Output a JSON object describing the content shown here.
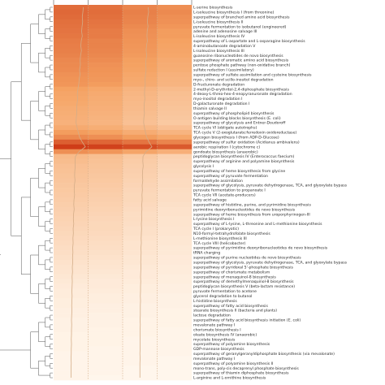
{
  "chart_data": {
    "type": "heatmap",
    "title": "",
    "xlabel": "",
    "ylabel": "",
    "grid": false,
    "legend": "none",
    "colors": {
      "low": "#fff6ec",
      "mid": "#f5a262",
      "high": "#c82a0a",
      "trend": "#d4ad88",
      "tree": "#555555"
    },
    "value_range": [
      0,
      1
    ],
    "rows": [
      "L-serine biosynthesis",
      "L-isoleucine biosynthesis I (from threonine)",
      "superpathway of branched amino acid biosynthesis",
      "L-isoleucine biosynthesis II",
      "pyruvate fermentation to isobutanol (engineered)",
      "adenine and adenosine salvage III",
      "L-isoleucine biosynthesis IV",
      "superpathway of L-aspartate and L-asparagine biosynthesis",
      "4-aminobutanoate degradation V",
      "L-isoleucine biosynthesis III",
      "guanosine ribonucleotides de novo biosynthesis",
      "superpathway of aromatic amino acid biosynthesis",
      "pentose phosphate pathway (non-oxidative branch)",
      "sulfate reduction I (assimilatory)",
      "superpathway of sulfate assimilation and cysteine biosynthesis",
      "myo-, chiro- and scillo-inositol degradation",
      "D-fructuronate degradation",
      "2-methyl-D-erythritol-2,4-diphosphate biosynthesis",
      "4-deoxy-L-threo-hex-4-enopyranuronate degradation",
      "myo-inositol degradation I",
      "D-galacturonate degradation I",
      "thiamin salvage II",
      "superpathway of phospholipid biosynthesis",
      "O-antigen building blocks biosynthesis (E. coli)",
      "superpathway of glycolysis and Entner-Doudoroff",
      "TCA cycle VI (obligate autotrophs)",
      "TCA cycle V (2-oxoglutarate:ferredoxin oxidoreductase)",
      "glycogen biosynthesis I (from ADP-D-Glucose)",
      "superpathway of sulfur oxidation (Acidianus ambivalens)",
      "aerobic respiration I (cytochrome c)",
      "gondoate biosynthesis (anaerobic)",
      "peptidoglycan biosynthesis IV (Enterococcus faecium)",
      "superpathway of arginine and polyamine biosynthesis",
      "glycolysis I",
      "superpathway of heme biosynthesis from glycine",
      "superpathway of pyruvate fermentation",
      "formaldehyde assimilation",
      "superpathway of glycolysis, pyruvate dehydrogenase, TCA, and glyoxylate bypass",
      "pyruvate fermentation to propanoate I",
      "TCA cycle VII (acetate-producers)",
      "fatty acid salvage",
      "superpathway of histidine, purine, and pyrimidine biosynthesis",
      "pyrimidine deoxyribonucleotides de novo biosynthesis",
      "superpathway of heme biosynthesis from uroporphyrinogen-III",
      "L-lysine biosynthesis I",
      "superpathway of L-lysine, L-threonine and L-methionine biosynthesis",
      "TCA cycle I (prokaryotic)",
      "N10-formyl-tetrahydrofolate biosynthesis",
      "L-methionine biosynthesis III",
      "TCA cycle VIII (helicobacter)",
      "superpathway of pyrimidine deoxyribonucleotides de novo biosynthesis",
      "tRNA charging",
      "superpathway of purine nucleotides de novo biosynthesis",
      "superpathway of glycolysis, pyruvate dehydrogenase, TCA, and glyoxylate bypass",
      "superpathway of pyridoxal 5'-phosphate biosynthesis",
      "superpathway of chorismate metabolism",
      "superpathway of menaquinol-8 biosynthesis",
      "superpathway of demethylmenaquinol-8 biosynthesis",
      "peptidoglycan biosynthesis V (beta-lactam resistance)",
      "pyruvate fermentation to acetone",
      "glycerol degradation to butanol",
      "L-histidine biosynthesis",
      "superpathway of fatty acid biosynthesis",
      "stearate biosynthesis II (bacteria and plants)",
      "lactose degradation",
      "superpathway of fatty acid biosynthesis initiation (E. coli)",
      "mevalonate pathway I",
      "chorismate biosynthesis I",
      "oleate biosynthesis IV (anaerobic)",
      "mycolate biosynthesis",
      "superpathway of polyamine biosynthesis",
      "GDP-mannose biosynthesis",
      "superpathway of geranylgeranyldiphosphate biosynthesis (via mevalonate)",
      "mevalonate pathway I",
      "superpathway of polyamine biosynthesis II",
      "mono-trans, poly-cis decaprenyl phosphate biosynthesis",
      "superpathway of thiamin diphosphate biosynthesis",
      "L-arginine and L-ornithine biosynthesis"
    ],
    "columns": 4,
    "values": [
      [
        0.72,
        0.7,
        0.62,
        0.58
      ],
      [
        0.74,
        0.72,
        0.64,
        0.6
      ],
      [
        0.73,
        0.71,
        0.63,
        0.58
      ],
      [
        0.71,
        0.69,
        0.62,
        0.57
      ],
      [
        0.7,
        0.68,
        0.6,
        0.55
      ],
      [
        0.69,
        0.66,
        0.58,
        0.52
      ],
      [
        0.68,
        0.66,
        0.57,
        0.52
      ],
      [
        0.66,
        0.63,
        0.56,
        0.5
      ],
      [
        0.65,
        0.63,
        0.55,
        0.49
      ],
      [
        0.64,
        0.62,
        0.54,
        0.48
      ],
      [
        0.63,
        0.61,
        0.53,
        0.47
      ],
      [
        0.61,
        0.59,
        0.51,
        0.45
      ],
      [
        0.6,
        0.57,
        0.5,
        0.44
      ],
      [
        0.59,
        0.56,
        0.49,
        0.43
      ],
      [
        0.57,
        0.55,
        0.47,
        0.41
      ],
      [
        0.56,
        0.54,
        0.46,
        0.4
      ],
      [
        0.55,
        0.52,
        0.45,
        0.39
      ],
      [
        0.5,
        0.47,
        0.4,
        0.35
      ],
      [
        0.48,
        0.45,
        0.38,
        0.33
      ],
      [
        0.47,
        0.44,
        0.37,
        0.32
      ],
      [
        0.46,
        0.43,
        0.36,
        0.31
      ],
      [
        0.44,
        0.42,
        0.35,
        0.3
      ],
      [
        0.43,
        0.41,
        0.34,
        0.29
      ],
      [
        0.42,
        0.4,
        0.33,
        0.28
      ],
      [
        0.41,
        0.39,
        0.32,
        0.27
      ],
      [
        0.45,
        0.43,
        0.37,
        0.32
      ],
      [
        0.52,
        0.5,
        0.44,
        0.39
      ],
      [
        0.6,
        0.58,
        0.52,
        0.47
      ],
      [
        0.78,
        0.75,
        0.69,
        0.62
      ],
      [
        0.92,
        0.9,
        0.86,
        0.8
      ],
      [
        0.58,
        0.55,
        0.48,
        0.42
      ],
      [
        0.36,
        0.33,
        0.27,
        0.22
      ],
      [
        0.34,
        0.31,
        0.25,
        0.2
      ],
      [
        0.32,
        0.3,
        0.24,
        0.19
      ],
      [
        0.31,
        0.29,
        0.23,
        0.18
      ],
      [
        0.3,
        0.28,
        0.22,
        0.17
      ],
      [
        0.29,
        0.27,
        0.21,
        0.16
      ],
      [
        0.28,
        0.26,
        0.2,
        0.16
      ],
      [
        0.27,
        0.25,
        0.19,
        0.15
      ],
      [
        0.26,
        0.24,
        0.18,
        0.14
      ],
      [
        0.25,
        0.23,
        0.18,
        0.14
      ],
      [
        0.24,
        0.22,
        0.17,
        0.13
      ],
      [
        0.23,
        0.21,
        0.16,
        0.12
      ],
      [
        0.22,
        0.2,
        0.15,
        0.12
      ],
      [
        0.21,
        0.19,
        0.15,
        0.11
      ],
      [
        0.2,
        0.18,
        0.14,
        0.11
      ],
      [
        0.19,
        0.18,
        0.13,
        0.1
      ],
      [
        0.18,
        0.17,
        0.13,
        0.1
      ],
      [
        0.17,
        0.16,
        0.12,
        0.09
      ],
      [
        0.16,
        0.15,
        0.11,
        0.09
      ],
      [
        0.15,
        0.14,
        0.11,
        0.08
      ],
      [
        0.14,
        0.13,
        0.1,
        0.08
      ],
      [
        0.13,
        0.12,
        0.09,
        0.07
      ],
      [
        0.12,
        0.11,
        0.09,
        0.07
      ],
      [
        0.11,
        0.1,
        0.08,
        0.06
      ],
      [
        0.1,
        0.09,
        0.07,
        0.06
      ],
      [
        0.09,
        0.08,
        0.07,
        0.05
      ],
      [
        0.08,
        0.07,
        0.06,
        0.05
      ],
      [
        0.07,
        0.07,
        0.05,
        0.04
      ],
      [
        0.06,
        0.06,
        0.05,
        0.04
      ],
      [
        0.06,
        0.05,
        0.04,
        0.03
      ],
      [
        0.05,
        0.05,
        0.04,
        0.03
      ],
      [
        0.05,
        0.04,
        0.03,
        0.03
      ],
      [
        0.04,
        0.04,
        0.03,
        0.02
      ],
      [
        0.04,
        0.03,
        0.03,
        0.02
      ],
      [
        0.03,
        0.03,
        0.02,
        0.02
      ],
      [
        0.03,
        0.03,
        0.02,
        0.02
      ],
      [
        0.03,
        0.02,
        0.02,
        0.01
      ],
      [
        0.02,
        0.02,
        0.02,
        0.01
      ],
      [
        0.02,
        0.02,
        0.01,
        0.01
      ],
      [
        0.02,
        0.02,
        0.01,
        0.01
      ],
      [
        0.02,
        0.01,
        0.01,
        0.01
      ],
      [
        0.01,
        0.01,
        0.01,
        0.01
      ],
      [
        0.01,
        0.01,
        0.01,
        0.0
      ],
      [
        0.01,
        0.01,
        0.01,
        0.0
      ],
      [
        0.01,
        0.01,
        0.0,
        0.0
      ],
      [
        0.01,
        0.01,
        0.0,
        0.0
      ],
      [
        0.01,
        0.0,
        0.0,
        0.0
      ]
    ],
    "trend_series": [
      [
        0.6,
        0.58,
        0.55,
        0.57,
        0.54,
        0.52,
        0.55,
        0.5,
        0.48,
        0.51,
        0.47,
        0.45,
        0.46,
        0.42,
        0.44,
        0.4,
        0.38,
        0.34,
        0.31,
        0.33,
        0.3,
        0.28,
        0.29,
        0.26,
        0.25,
        0.3,
        0.36,
        0.42,
        0.55,
        0.7,
        0.4,
        0.22,
        0.2,
        0.21,
        0.19,
        0.18,
        0.2,
        0.17,
        0.16,
        0.18,
        0.15,
        0.14,
        0.16,
        0.13,
        0.12,
        0.14,
        0.11,
        0.12,
        0.1,
        0.11,
        0.09,
        0.1,
        0.08,
        0.09,
        0.07,
        0.08,
        0.06,
        0.07,
        0.06,
        0.05,
        0.06,
        0.05,
        0.04,
        0.05,
        0.04,
        0.03,
        0.04,
        0.03,
        0.03,
        0.02,
        0.03,
        0.02,
        0.02,
        0.01,
        0.02,
        0.01,
        0.01,
        0.01
      ],
      [
        0.4,
        0.42,
        0.38,
        0.36,
        0.39,
        0.35,
        0.34,
        0.36,
        0.32,
        0.3,
        0.33,
        0.29,
        0.28,
        0.3,
        0.27,
        0.25,
        0.26,
        0.23,
        0.22,
        0.24,
        0.21,
        0.2,
        0.22,
        0.19,
        0.18,
        0.22,
        0.27,
        0.33,
        0.44,
        0.58,
        0.3,
        0.15,
        0.14,
        0.16,
        0.13,
        0.12,
        0.14,
        0.11,
        0.12,
        0.1,
        0.11,
        0.09,
        0.1,
        0.08,
        0.09,
        0.07,
        0.08,
        0.07,
        0.06,
        0.07,
        0.05,
        0.06,
        0.05,
        0.04,
        0.05,
        0.04,
        0.03,
        0.04,
        0.03,
        0.03,
        0.02,
        0.03,
        0.02,
        0.02,
        0.02,
        0.01,
        0.02,
        0.01,
        0.01,
        0.01,
        0.01,
        0.01,
        0.0,
        0.01,
        0.0,
        0.0,
        0.0,
        0.0
      ]
    ]
  }
}
